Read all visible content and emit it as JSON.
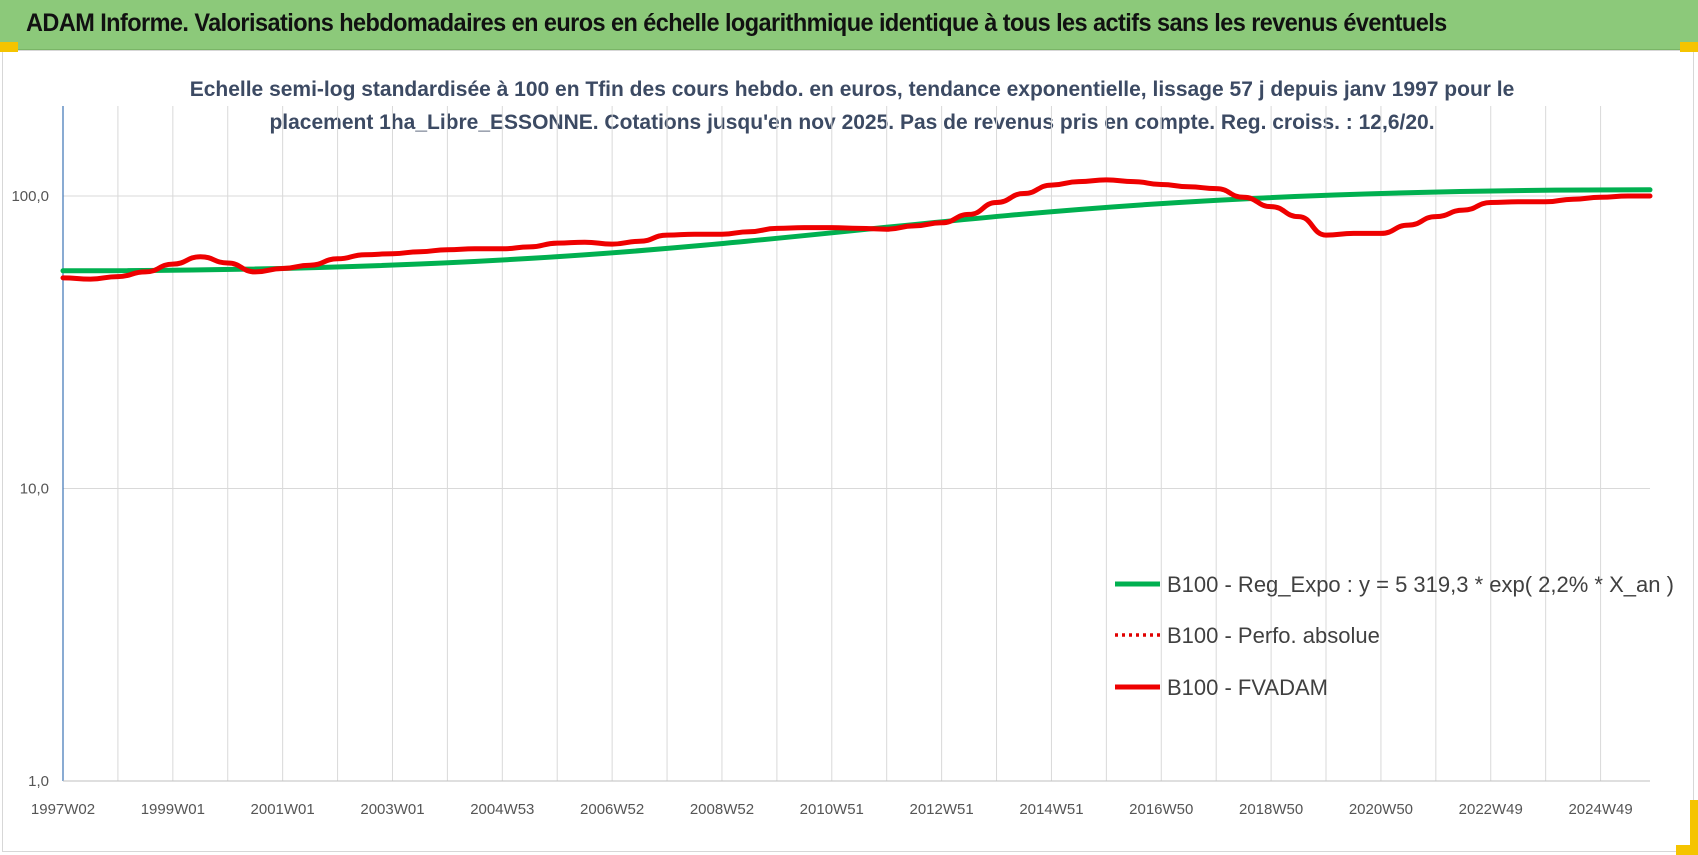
{
  "header": {
    "title": "ADAM Informe. Valorisations hebdomadaires en euros en échelle logarithmique identique à tous les actifs sans les revenus éventuels"
  },
  "colors": {
    "header_bg": "#8cc97a",
    "trend": "#00b050",
    "perf": "#e00000",
    "fvadam": "#ee0000",
    "corner": "#f5c400"
  },
  "chart_data": {
    "type": "line",
    "subtitle_lines": [
      "Echelle semi-log standardisée à 100 en Tfin des cours hebdo. en euros, tendance exponentielle, lissage 57 j depuis janv 1997 pour le",
      "placement 1ha_Libre_ESSONNE. Cotations jusqu'en nov 2025. Pas de revenus pris en compte. Reg. croiss. : 12,6/20."
    ],
    "y_scale": "log",
    "ylim": [
      1,
      200
    ],
    "y_ticks": [
      {
        "value": 1,
        "label": "1,0"
      },
      {
        "value": 10,
        "label": "10,0"
      },
      {
        "value": 100,
        "label": "100,0"
      }
    ],
    "xlim": [
      1997.0,
      2025.9
    ],
    "x_ticks": [
      {
        "pos": 1997.0,
        "label": "1997W02"
      },
      {
        "pos": 1999.0,
        "label": "1999W01"
      },
      {
        "pos": 2001.0,
        "label": "2001W01"
      },
      {
        "pos": 2003.0,
        "label": "2003W01"
      },
      {
        "pos": 2005.0,
        "label": "2004W53"
      },
      {
        "pos": 2007.0,
        "label": "2006W52"
      },
      {
        "pos": 2009.0,
        "label": "2008W52"
      },
      {
        "pos": 2011.0,
        "label": "2010W51"
      },
      {
        "pos": 2013.0,
        "label": "2012W51"
      },
      {
        "pos": 2015.0,
        "label": "2014W51"
      },
      {
        "pos": 2017.0,
        "label": "2016W50"
      },
      {
        "pos": 2019.0,
        "label": "2018W50"
      },
      {
        "pos": 2021.0,
        "label": "2020W50"
      },
      {
        "pos": 2023.0,
        "label": "2022W49"
      },
      {
        "pos": 2025.0,
        "label": "2024W49"
      }
    ],
    "grid": true,
    "legend_position": "bottom-right",
    "series": [
      {
        "name": "B100 - Reg_Expo : y = 5 319,3 * exp( 2,2% *  X_an )",
        "color": "#00b050",
        "style": "solid",
        "x": [
          1997.0,
          2025.9
        ],
        "y": [
          55.5,
          105.0
        ]
      },
      {
        "name": "B100 - Perfo. absolue",
        "color": "#e00000",
        "style": "dotted",
        "x": [],
        "y": []
      },
      {
        "name": "B100 - FVADAM",
        "color": "#ee0000",
        "style": "solid",
        "x": [
          1997.0,
          1997.5,
          1998.0,
          1998.5,
          1999.0,
          1999.5,
          2000.0,
          2000.5,
          2001.0,
          2001.5,
          2002.0,
          2002.5,
          2003.0,
          2003.5,
          2004.0,
          2004.5,
          2005.0,
          2005.5,
          2006.0,
          2006.5,
          2007.0,
          2007.5,
          2008.0,
          2008.5,
          2009.0,
          2009.5,
          2010.0,
          2010.5,
          2011.0,
          2011.5,
          2012.0,
          2012.5,
          2013.0,
          2013.5,
          2014.0,
          2014.5,
          2015.0,
          2015.5,
          2016.0,
          2016.5,
          2017.0,
          2017.5,
          2018.0,
          2018.5,
          2019.0,
          2019.5,
          2020.0,
          2020.5,
          2021.0,
          2021.5,
          2022.0,
          2022.5,
          2023.0,
          2023.5,
          2024.0,
          2024.5,
          2025.0,
          2025.5,
          2025.9
        ],
        "y": [
          52.5,
          52.0,
          53.0,
          55.0,
          58.5,
          62.0,
          59.0,
          55.0,
          56.5,
          58.0,
          61.0,
          63.0,
          63.5,
          64.5,
          65.5,
          66.0,
          66.0,
          67.0,
          69.0,
          69.5,
          68.5,
          70.0,
          73.5,
          74.0,
          74.0,
          75.5,
          77.5,
          78.0,
          78.0,
          77.5,
          77.0,
          79.0,
          81.0,
          86.5,
          95.0,
          102.0,
          109.0,
          112.0,
          113.5,
          112.0,
          109.5,
          107.5,
          106.0,
          99.0,
          92.0,
          85.0,
          73.5,
          74.5,
          74.5,
          79.5,
          85.0,
          89.5,
          95.0,
          95.5,
          95.5,
          97.5,
          99.0,
          100.0,
          100.0
        ]
      }
    ]
  }
}
